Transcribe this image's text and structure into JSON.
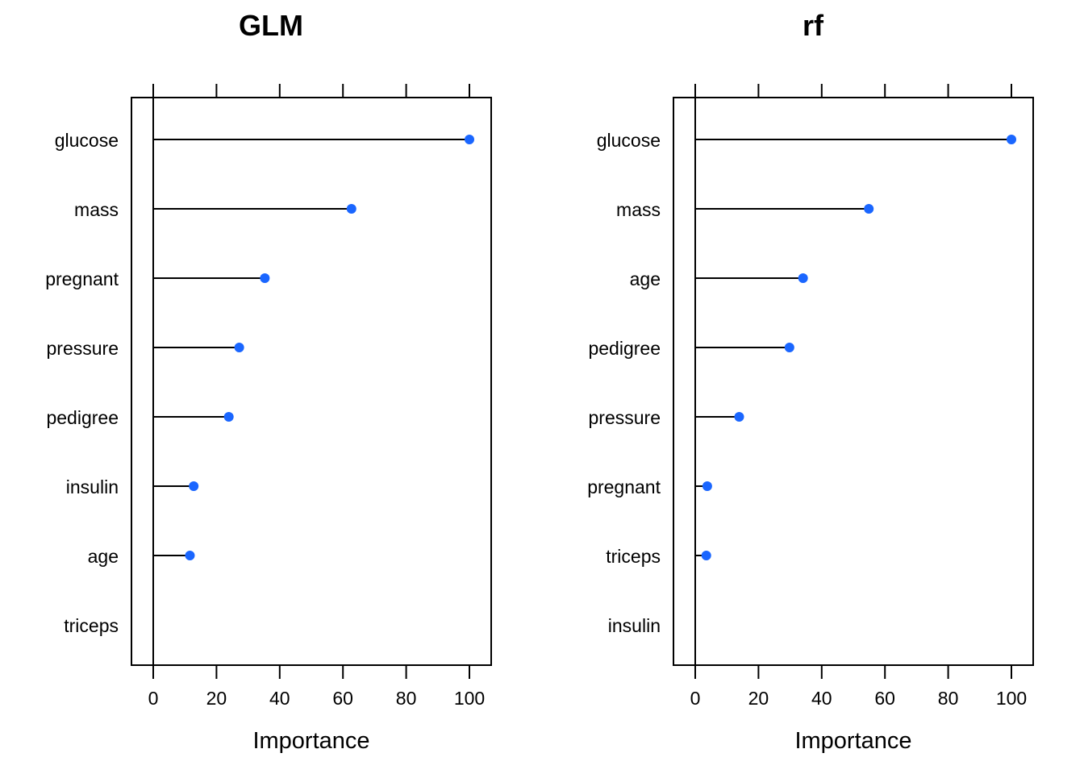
{
  "chart_data": [
    {
      "type": "dot",
      "title": "GLM",
      "xlabel": "Importance",
      "ylabel": "",
      "xlim": [
        0,
        100
      ],
      "ticks": [
        0,
        20,
        40,
        60,
        80,
        100
      ],
      "categories": [
        "glucose",
        "mass",
        "pregnant",
        "pressure",
        "pedigree",
        "insulin",
        "age",
        "triceps"
      ],
      "values": [
        100,
        62.7,
        35.3,
        27.2,
        23.9,
        12.8,
        11.6,
        0
      ],
      "grid": false,
      "point_color": "#1a66ff",
      "line_color": "#000000"
    },
    {
      "type": "dot",
      "title": "rf",
      "xlabel": "Importance",
      "ylabel": "",
      "xlim": [
        0,
        100
      ],
      "ticks": [
        0,
        20,
        40,
        60,
        80,
        100
      ],
      "categories": [
        "glucose",
        "mass",
        "age",
        "pedigree",
        "pressure",
        "pregnant",
        "triceps",
        "insulin"
      ],
      "values": [
        100,
        54.9,
        34.1,
        29.8,
        13.9,
        3.8,
        3.5,
        0
      ],
      "grid": false,
      "point_color": "#1a66ff",
      "line_color": "#000000"
    }
  ]
}
